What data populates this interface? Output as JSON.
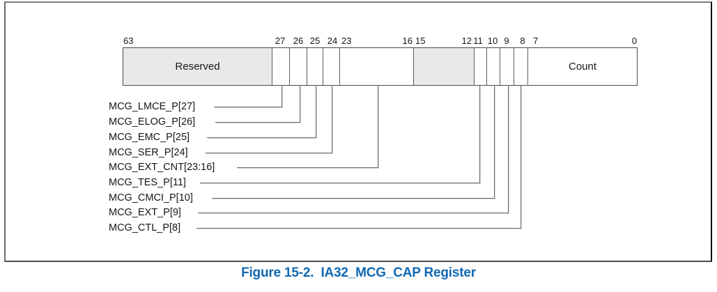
{
  "figure": {
    "caption": "Figure 15-2.  IA32_MCG_CAP Register"
  },
  "register": {
    "bit_labels": [
      "63",
      "27",
      "26",
      "25",
      "24",
      "23",
      "16",
      "15",
      "12",
      "11",
      "10",
      "9",
      "8",
      "7",
      "0"
    ],
    "fields": {
      "reserved_label": "Reserved",
      "count_label": "Count"
    },
    "callouts": [
      "MCG_LMCE_P[27]",
      "MCG_ELOG_P[26]",
      "MCG_EMC_P[25]",
      "MCG_SER_P[24]",
      "MCG_EXT_CNT[23:16]",
      "MCG_TES_P[11]",
      "MCG_CMCI_P[10]",
      "MCG_EXT_P[9]",
      "MCG_CTL_P[8]"
    ]
  },
  "colors": {
    "shaded_field": "#e9e9e9",
    "line_gray": "#6f6f6f",
    "caption_blue": "#0f68b2"
  }
}
